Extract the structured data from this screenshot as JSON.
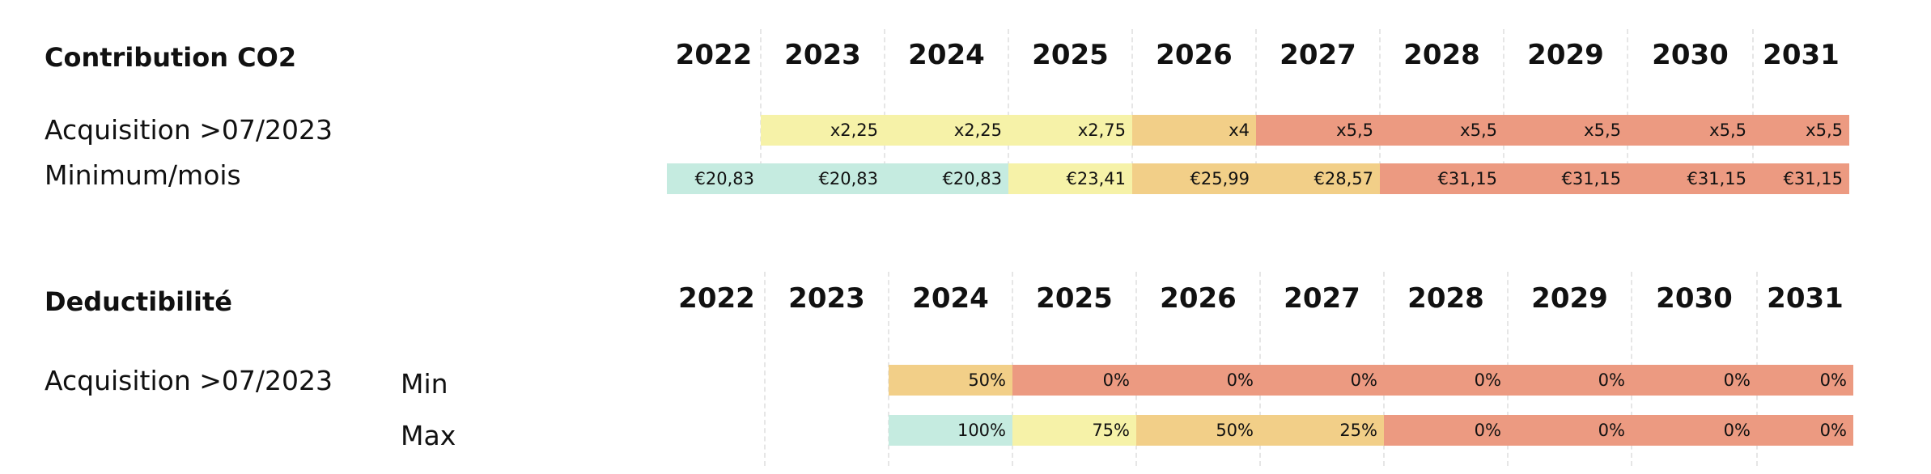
{
  "colors": {
    "mint": "#c5ebe0",
    "pale_yellow": "#f6f2a8",
    "yellow": "#f4d98a",
    "orange": "#f2cf88",
    "red": "#ec9a81"
  },
  "co2": {
    "title": "Contribution CO2",
    "years": [
      "2022",
      "2023",
      "2024",
      "2025",
      "2026",
      "2027",
      "2028",
      "2029",
      "2030",
      "2031"
    ],
    "rows": [
      {
        "label": "Acquisition >07/2023",
        "cells": [
          {
            "v": "",
            "c": ""
          },
          {
            "v": "x2,25",
            "c": "pale_yellow"
          },
          {
            "v": "x2,25",
            "c": "pale_yellow"
          },
          {
            "v": "x2,75",
            "c": "pale_yellow"
          },
          {
            "v": "x4",
            "c": "orange"
          },
          {
            "v": "x5,5",
            "c": "red"
          },
          {
            "v": "x5,5",
            "c": "red"
          },
          {
            "v": "x5,5",
            "c": "red"
          },
          {
            "v": "x5,5",
            "c": "red"
          },
          {
            "v": "x5,5",
            "c": "red"
          }
        ]
      },
      {
        "label": "Minimum/mois",
        "cells": [
          {
            "v": "€20,83",
            "c": "mint"
          },
          {
            "v": "€20,83",
            "c": "mint"
          },
          {
            "v": "€20,83",
            "c": "mint"
          },
          {
            "v": "€23,41",
            "c": "pale_yellow"
          },
          {
            "v": "€25,99",
            "c": "orange"
          },
          {
            "v": "€28,57",
            "c": "orange"
          },
          {
            "v": "€31,15",
            "c": "red"
          },
          {
            "v": "€31,15",
            "c": "red"
          },
          {
            "v": "€31,15",
            "c": "red"
          },
          {
            "v": "€31,15",
            "c": "red"
          }
        ]
      }
    ]
  },
  "ded": {
    "title": "Deductibilité",
    "years": [
      "2022",
      "2023",
      "2024",
      "2025",
      "2026",
      "2027",
      "2028",
      "2029",
      "2030",
      "2031"
    ],
    "row_label": "Acquisition >07/2023",
    "rows": [
      {
        "sublabel": "Min",
        "cells": [
          {
            "v": "",
            "c": ""
          },
          {
            "v": "",
            "c": ""
          },
          {
            "v": "50%",
            "c": "orange"
          },
          {
            "v": "0%",
            "c": "red"
          },
          {
            "v": "0%",
            "c": "red"
          },
          {
            "v": "0%",
            "c": "red"
          },
          {
            "v": "0%",
            "c": "red"
          },
          {
            "v": "0%",
            "c": "red"
          },
          {
            "v": "0%",
            "c": "red"
          },
          {
            "v": "0%",
            "c": "red"
          }
        ]
      },
      {
        "sublabel": "Max",
        "cells": [
          {
            "v": "",
            "c": ""
          },
          {
            "v": "",
            "c": ""
          },
          {
            "v": "100%",
            "c": "mint"
          },
          {
            "v": "75%",
            "c": "pale_yellow"
          },
          {
            "v": "50%",
            "c": "orange"
          },
          {
            "v": "25%",
            "c": "orange"
          },
          {
            "v": "0%",
            "c": "red"
          },
          {
            "v": "0%",
            "c": "red"
          },
          {
            "v": "0%",
            "c": "red"
          },
          {
            "v": "0%",
            "c": "red"
          }
        ]
      }
    ]
  }
}
